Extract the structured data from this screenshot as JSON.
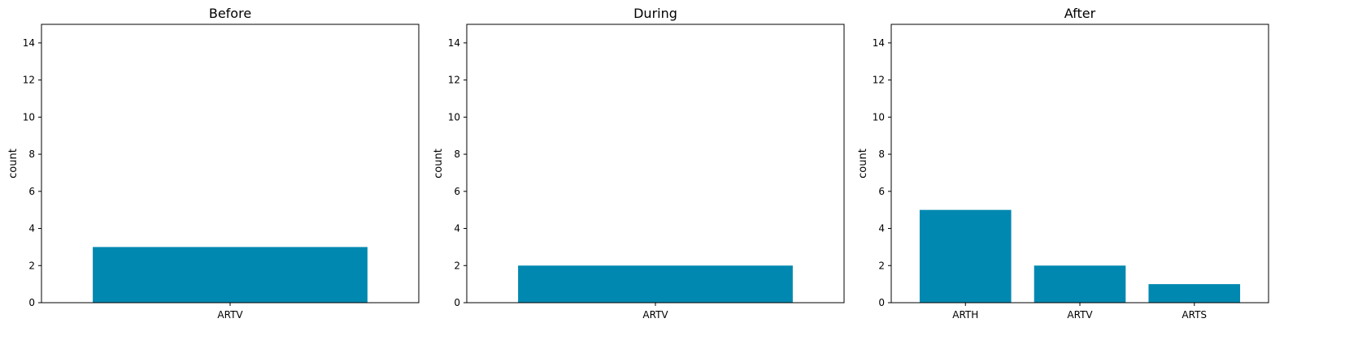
{
  "chart_data": [
    {
      "type": "bar",
      "title": "Before",
      "ylabel": "count",
      "categories": [
        "ARTV"
      ],
      "values": [
        3
      ],
      "ylim": [
        0,
        15
      ],
      "yticks": [
        0,
        2,
        4,
        6,
        8,
        10,
        12,
        14
      ],
      "color": "#0088b0",
      "grid": false
    },
    {
      "type": "bar",
      "title": "During",
      "ylabel": "count",
      "categories": [
        "ARTV"
      ],
      "values": [
        2
      ],
      "ylim": [
        0,
        15
      ],
      "yticks": [
        0,
        2,
        4,
        6,
        8,
        10,
        12,
        14
      ],
      "color": "#0088b0",
      "grid": false
    },
    {
      "type": "bar",
      "title": "After",
      "ylabel": "count",
      "categories": [
        "ARTH",
        "ARTV",
        "ARTS"
      ],
      "values": [
        5,
        2,
        1
      ],
      "ylim": [
        0,
        15
      ],
      "yticks": [
        0,
        2,
        4,
        6,
        8,
        10,
        12,
        14
      ],
      "color": "#0088b0",
      "grid": false
    }
  ]
}
